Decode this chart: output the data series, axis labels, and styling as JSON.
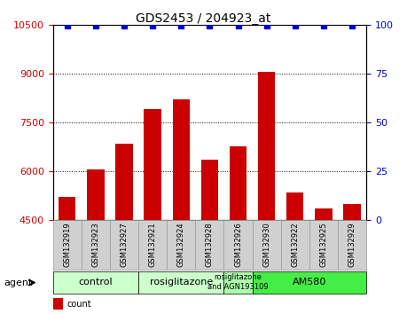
{
  "title": "GDS2453 / 204923_at",
  "samples": [
    "GSM132919",
    "GSM132923",
    "GSM132927",
    "GSM132921",
    "GSM132924",
    "GSM132928",
    "GSM132926",
    "GSM132930",
    "GSM132922",
    "GSM132925",
    "GSM132929"
  ],
  "counts": [
    5200,
    6050,
    6850,
    7900,
    8200,
    6350,
    6750,
    9050,
    5350,
    4850,
    5000
  ],
  "percentile_values": [
    99.5,
    99.5,
    99.5,
    99.5,
    99.5,
    99.5,
    99.5,
    99.5,
    99.5,
    99.5,
    99.5
  ],
  "ylim_left": [
    4500,
    10500
  ],
  "ylim_right": [
    0,
    100
  ],
  "yticks_left": [
    4500,
    6000,
    7500,
    9000,
    10500
  ],
  "yticks_right": [
    0,
    25,
    50,
    75,
    100
  ],
  "bar_color": "#cc0000",
  "dot_color": "#0000cc",
  "bar_width": 0.6,
  "group_spans": [
    {
      "start": 0,
      "end": 2,
      "label": "control",
      "color": "#ccffcc"
    },
    {
      "start": 3,
      "end": 5,
      "label": "rosiglitazone",
      "color": "#ccffcc"
    },
    {
      "start": 6,
      "end": 6,
      "label": "rosiglitazone\nand AGN193109",
      "color": "#aaffaa"
    },
    {
      "start": 7,
      "end": 10,
      "label": "AM580",
      "color": "#44ee44"
    }
  ],
  "tick_color_left": "#cc0000",
  "tick_color_right": "#0000cc",
  "grid_linestyle": "dotted",
  "font_size": 8,
  "title_font_size": 10,
  "xlabel_bg_color": "#d0d0d0",
  "xlabel_border_color": "#999999"
}
